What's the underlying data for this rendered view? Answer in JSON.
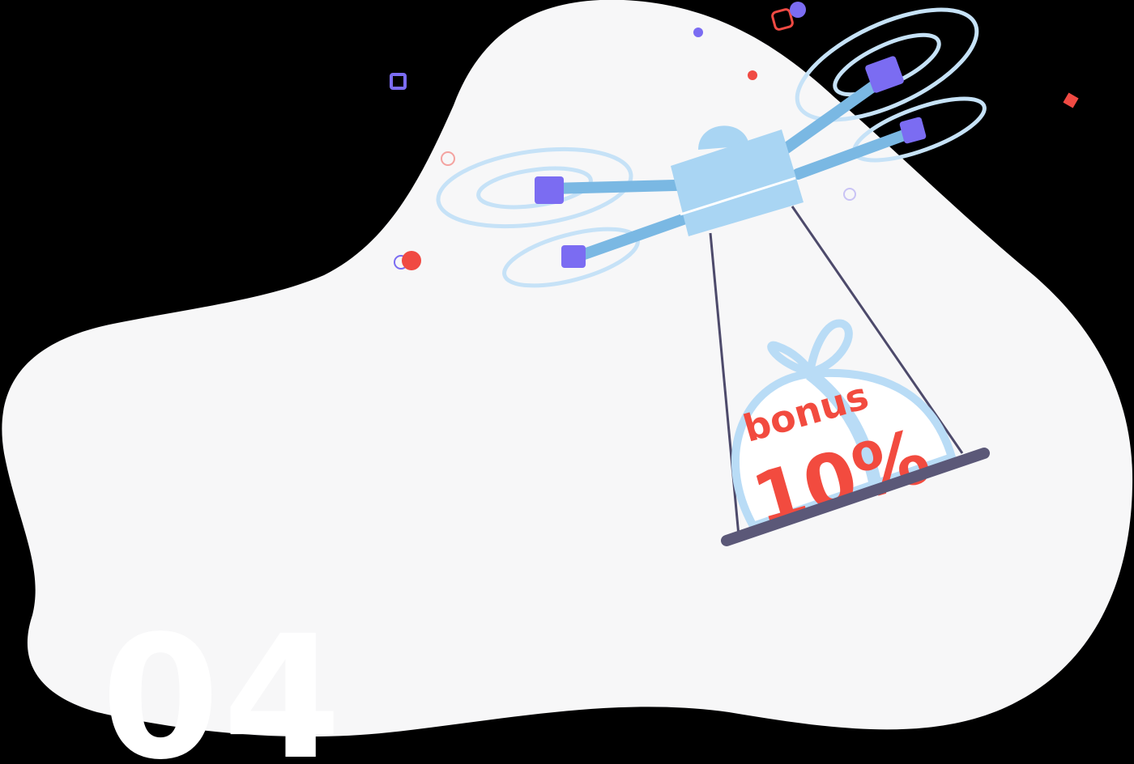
{
  "illustration": {
    "step_number": "04",
    "gift_label": "bonus",
    "gift_value": "10%",
    "colors": {
      "page_background": "#000000",
      "blob": "#f7f7f8",
      "step_number": "#ffffff",
      "drone_body": "#a9d5f3",
      "drone_arm": "#7ab8e3",
      "rotor_blur": "#d6ebfa",
      "motor": "#7b6cf2",
      "rope": "#4d4a6b",
      "swing_board": "#5b5878",
      "gift_ribbon": "#b9dcf6",
      "bonus_text": "#f24b3f",
      "accent_red": "#f04a43",
      "accent_purple": "#7b6cf2"
    }
  }
}
